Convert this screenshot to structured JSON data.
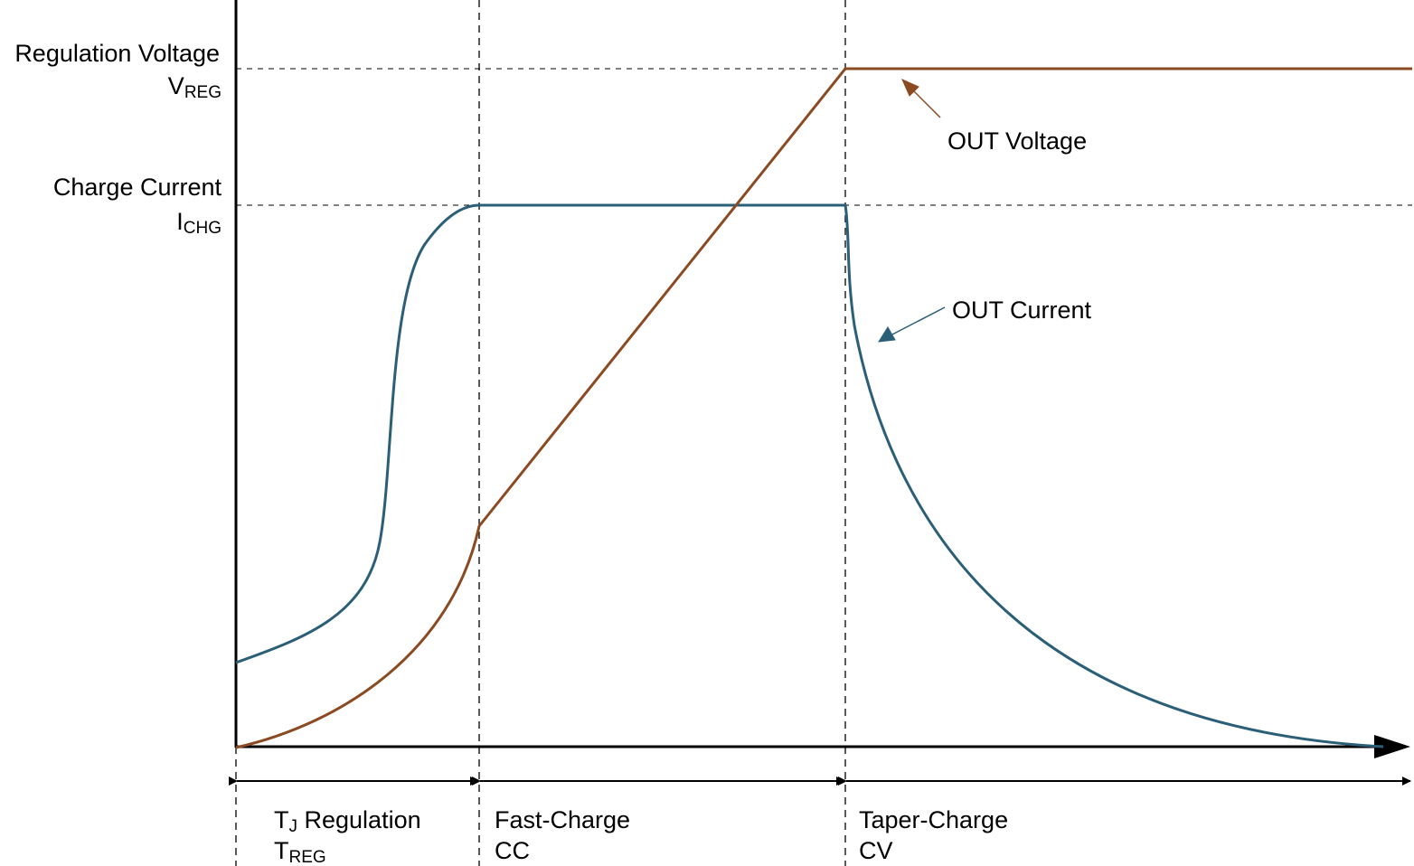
{
  "colors": {
    "voltage": "#8B4A22",
    "current": "#2B5F78",
    "axis": "#000000"
  },
  "y_labels": {
    "regulation_voltage": {
      "line1": "Regulation Voltage",
      "main": "V",
      "sub": "REG"
    },
    "charge_current": {
      "line1": "Charge Current",
      "main": "I",
      "sub": "CHG"
    }
  },
  "series": {
    "voltage": {
      "label": "OUT Voltage"
    },
    "current": {
      "label": "OUT Current"
    }
  },
  "phases": [
    {
      "line1_main": "T",
      "line1_sub": "J",
      "line1_rest": " Regulation",
      "line2_main": "T",
      "line2_sub": "REG"
    },
    {
      "line1": "Fast-Charge",
      "line2": "CC"
    },
    {
      "line1": "Taper-Charge",
      "line2": "CV"
    }
  ]
}
